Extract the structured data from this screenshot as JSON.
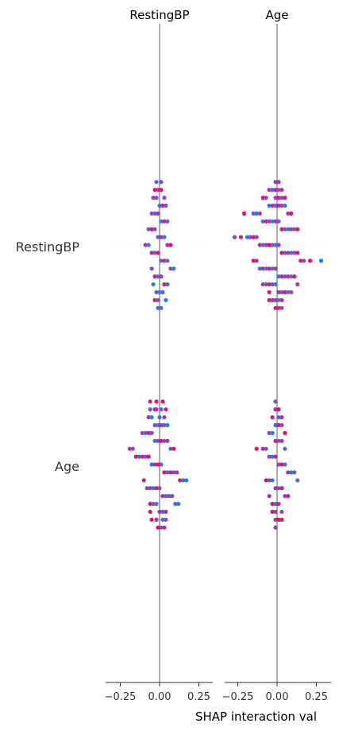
{
  "chart_data": {
    "type": "scatter",
    "subtype": "shap-interaction-beeswarm",
    "panels": [
      "RestingBP",
      "Age"
    ],
    "features": [
      "RestingBP",
      "Age"
    ],
    "xlabel": "SHAP interaction val",
    "xlim": [
      -0.35,
      0.35
    ],
    "xticks": [
      -0.25,
      0.0,
      0.25
    ],
    "xtick_labels": [
      "−0.25",
      "0.00",
      "0.25"
    ],
    "colors": {
      "low": "#008bfb",
      "mid": "#9a3fc7",
      "high": "#ff0052",
      "axis": "#808080",
      "text": "#333333"
    },
    "rows": [
      {
        "feature": "RestingBP",
        "panel": "RestingBP",
        "points": [
          [
            -0.02,
            0.35
          ],
          [
            0.01,
            0.35
          ],
          [
            -0.03,
            0.9
          ],
          [
            -0.01,
            0.7
          ],
          [
            0.01,
            0.9
          ],
          [
            0.03,
            0.5
          ],
          [
            -0.04,
            0.6
          ],
          [
            -0.02,
            0.4
          ],
          [
            0.0,
            0.2
          ],
          [
            0.02,
            0.8
          ],
          [
            0.04,
            0.3
          ],
          [
            -0.05,
            0.5
          ],
          [
            -0.03,
            0.2
          ],
          [
            -0.01,
            0.7
          ],
          [
            0.01,
            0.1
          ],
          [
            0.03,
            0.8
          ],
          [
            0.05,
            0.4
          ],
          [
            -0.07,
            0.3
          ],
          [
            -0.05,
            0.9
          ],
          [
            -0.03,
            0.5
          ],
          [
            -0.01,
            0.2
          ],
          [
            0.01,
            0.7
          ],
          [
            0.03,
            0.1
          ],
          [
            0.05,
            0.6
          ],
          [
            0.07,
            0.9
          ],
          [
            -0.09,
            0.6
          ],
          [
            -0.07,
            0.1
          ],
          [
            -0.05,
            0.8
          ],
          [
            -0.03,
            0.4
          ],
          [
            -0.01,
            0.9
          ],
          [
            0.01,
            0.3
          ],
          [
            0.03,
            0.7
          ],
          [
            0.05,
            0.2
          ],
          [
            0.07,
            0.5
          ],
          [
            0.09,
            0.1
          ],
          [
            -0.05,
            0.4
          ],
          [
            -0.03,
            0.8
          ],
          [
            -0.01,
            0.2
          ],
          [
            0.01,
            0.6
          ],
          [
            0.03,
            0.9
          ],
          [
            0.05,
            0.3
          ],
          [
            -0.04,
            0.1
          ],
          [
            -0.02,
            0.3
          ],
          [
            0.0,
            0.2
          ],
          [
            0.02,
            0.2
          ],
          [
            0.04,
            0.1
          ],
          [
            -0.03,
            0.8
          ],
          [
            -0.01,
            0.5
          ],
          [
            0.01,
            0.2
          ],
          [
            -0.01,
            0.2
          ]
        ]
      },
      {
        "feature": "RestingBP",
        "panel": "Age",
        "points": [
          [
            -0.01,
            0.2
          ],
          [
            0.01,
            0.1
          ],
          [
            -0.01,
            0.5
          ],
          [
            0.01,
            0.6
          ],
          [
            -0.03,
            0.3
          ],
          [
            -0.01,
            0.9
          ],
          [
            0.01,
            0.4
          ],
          [
            0.03,
            0.7
          ],
          [
            -0.05,
            0.6
          ],
          [
            -0.03,
            0.2
          ],
          [
            -0.01,
            0.5
          ],
          [
            0.01,
            0.9
          ],
          [
            0.03,
            0.3
          ],
          [
            0.05,
            0.8
          ],
          [
            -0.09,
            0.9
          ],
          [
            -0.07,
            0.4
          ],
          [
            -0.05,
            0.1
          ],
          [
            -0.03,
            0.7
          ],
          [
            -0.01,
            0.3
          ],
          [
            0.01,
            0.8
          ],
          [
            0.03,
            0.5
          ],
          [
            0.05,
            0.2
          ],
          [
            0.07,
            0.6
          ],
          [
            0.09,
            0.9
          ],
          [
            -0.21,
            0.95
          ],
          [
            -0.15,
            0.3
          ],
          [
            -0.13,
            0.1
          ],
          [
            -0.11,
            0.6
          ],
          [
            -0.09,
            0.2
          ],
          [
            -0.07,
            0.8
          ],
          [
            -0.05,
            0.5
          ],
          [
            -0.03,
            0.1
          ],
          [
            -0.01,
            0.7
          ],
          [
            0.01,
            0.3
          ],
          [
            0.03,
            0.9
          ],
          [
            0.05,
            0.4
          ],
          [
            0.07,
            0.1
          ],
          [
            0.09,
            0.6
          ],
          [
            0.11,
            0.3
          ],
          [
            0.13,
            0.9
          ],
          [
            -0.27,
            0.4
          ],
          [
            -0.23,
            0.8
          ],
          [
            -0.19,
            0.1
          ],
          [
            -0.17,
            0.5
          ],
          [
            -0.15,
            0.9
          ],
          [
            -0.13,
            0.3
          ],
          [
            -0.11,
            0.7
          ],
          [
            -0.09,
            0.2
          ],
          [
            -0.07,
            0.6
          ],
          [
            -0.05,
            1.0
          ],
          [
            -0.03,
            0.4
          ],
          [
            -0.01,
            0.1
          ],
          [
            0.01,
            0.6
          ],
          [
            0.03,
            0.9
          ],
          [
            0.05,
            0.3
          ],
          [
            0.07,
            0.7
          ],
          [
            0.09,
            0.2
          ],
          [
            0.11,
            0.5
          ],
          [
            0.13,
            0.8
          ],
          [
            0.15,
            0.9
          ],
          [
            0.17,
            0.4
          ],
          [
            0.21,
            0.95
          ],
          [
            0.28,
            0.05
          ],
          [
            -0.15,
            0.95
          ],
          [
            -0.13,
            0.5
          ],
          [
            -0.11,
            0.1
          ],
          [
            -0.09,
            0.7
          ],
          [
            -0.07,
            0.3
          ],
          [
            -0.05,
            0.9
          ],
          [
            -0.03,
            0.2
          ],
          [
            -0.01,
            0.6
          ],
          [
            0.01,
            0.1
          ],
          [
            0.03,
            0.8
          ],
          [
            0.05,
            0.4
          ],
          [
            0.07,
            0.7
          ],
          [
            0.09,
            0.2
          ],
          [
            0.11,
            0.9
          ],
          [
            0.13,
            0.5
          ],
          [
            -0.09,
            0.6
          ],
          [
            -0.07,
            0.2
          ],
          [
            -0.05,
            0.9
          ],
          [
            -0.03,
            0.4
          ],
          [
            -0.01,
            0.1
          ],
          [
            0.01,
            0.7
          ],
          [
            0.03,
            0.3
          ],
          [
            0.05,
            0.8
          ],
          [
            0.07,
            0.2
          ],
          [
            0.09,
            0.5
          ],
          [
            -0.05,
            0.9
          ],
          [
            -0.03,
            0.3
          ],
          [
            -0.01,
            0.6
          ],
          [
            0.01,
            0.1
          ],
          [
            0.03,
            0.8
          ],
          [
            -0.05,
            0.9
          ],
          [
            -0.03,
            0.6
          ],
          [
            0.01,
            0.95
          ],
          [
            0.03,
            0.5
          ],
          [
            -0.01,
            0.9
          ],
          [
            0.01,
            0.7
          ]
        ]
      },
      {
        "feature": "Age",
        "panel": "RestingBP",
        "points": [
          [
            -0.02,
            0.9
          ],
          [
            0.02,
            0.95
          ],
          [
            -0.06,
            0.8
          ],
          [
            -0.02,
            0.6
          ],
          [
            0.01,
            0.3
          ],
          [
            0.04,
            0.9
          ],
          [
            -0.06,
            0.3
          ],
          [
            -0.03,
            0.7
          ],
          [
            0.0,
            0.2
          ],
          [
            0.03,
            0.5
          ],
          [
            -0.07,
            0.6
          ],
          [
            -0.05,
            0.1
          ],
          [
            -0.03,
            0.4
          ],
          [
            -0.01,
            0.2
          ],
          [
            0.01,
            0.7
          ],
          [
            0.03,
            0.3
          ],
          [
            0.05,
            0.1
          ],
          [
            -0.11,
            0.5
          ],
          [
            -0.09,
            0.2
          ],
          [
            -0.07,
            0.8
          ],
          [
            -0.05,
            0.4
          ],
          [
            -0.03,
            0.1
          ],
          [
            -0.01,
            0.6
          ],
          [
            0.01,
            0.9
          ],
          [
            0.03,
            0.3
          ],
          [
            0.05,
            0.7
          ],
          [
            0.07,
            0.2
          ],
          [
            0.09,
            0.95
          ],
          [
            -0.19,
            0.6
          ],
          [
            -0.17,
            0.5
          ],
          [
            -0.15,
            0.9
          ],
          [
            -0.13,
            0.2
          ],
          [
            -0.11,
            0.7
          ],
          [
            -0.09,
            0.4
          ],
          [
            -0.07,
            0.95
          ],
          [
            -0.05,
            0.1
          ],
          [
            -0.03,
            0.6
          ],
          [
            -0.01,
            0.9
          ],
          [
            0.01,
            0.3
          ],
          [
            0.03,
            0.95
          ],
          [
            0.05,
            0.2
          ],
          [
            0.07,
            0.8
          ],
          [
            0.09,
            0.4
          ],
          [
            0.11,
            0.6
          ],
          [
            0.13,
            0.9
          ],
          [
            0.15,
            0.2
          ],
          [
            0.17,
            0.05
          ],
          [
            -0.1,
            0.8
          ],
          [
            -0.08,
            0.3
          ],
          [
            -0.06,
            0.6
          ],
          [
            -0.04,
            0.1
          ],
          [
            -0.02,
            0.9
          ],
          [
            0.0,
            0.4
          ],
          [
            0.02,
            0.7
          ],
          [
            0.04,
            0.2
          ],
          [
            0.06,
            0.5
          ],
          [
            0.08,
            0.3
          ],
          [
            0.1,
            0.1
          ],
          [
            0.12,
            0.2
          ],
          [
            -0.06,
            0.9
          ],
          [
            -0.04,
            0.4
          ],
          [
            -0.02,
            0.2
          ],
          [
            0.0,
            0.7
          ],
          [
            0.02,
            0.3
          ],
          [
            0.04,
            0.6
          ],
          [
            -0.06,
            0.9
          ],
          [
            -0.02,
            0.5
          ],
          [
            0.02,
            0.2
          ],
          [
            0.04,
            0.4
          ],
          [
            -0.05,
            0.95
          ],
          [
            -0.02,
            0.6
          ],
          [
            0.01,
            0.3
          ],
          [
            0.03,
            0.8
          ],
          [
            -0.01,
            0.9
          ]
        ]
      },
      {
        "feature": "Age",
        "panel": "Age",
        "points": [
          [
            -0.01,
            0.1
          ],
          [
            -0.01,
            0.3
          ],
          [
            0.01,
            0.4
          ],
          [
            -0.01,
            0.5
          ],
          [
            0.01,
            0.9
          ],
          [
            -0.01,
            0.7
          ],
          [
            0.01,
            0.3
          ],
          [
            0.03,
            0.6
          ],
          [
            -0.03,
            0.8
          ],
          [
            -0.01,
            0.2
          ],
          [
            0.01,
            0.9
          ],
          [
            0.03,
            0.5
          ],
          [
            0.05,
            0.95
          ],
          [
            -0.05,
            0.4
          ],
          [
            -0.03,
            0.1
          ],
          [
            -0.01,
            0.8
          ],
          [
            0.01,
            0.3
          ],
          [
            0.03,
            0.6
          ],
          [
            0.05,
            0.2
          ],
          [
            -0.13,
            0.9
          ],
          [
            -0.09,
            0.7
          ],
          [
            -0.07,
            0.2
          ],
          [
            -0.05,
            0.5
          ],
          [
            -0.03,
            0.1
          ],
          [
            -0.01,
            0.8
          ],
          [
            0.01,
            0.4
          ],
          [
            0.03,
            0.9
          ],
          [
            0.05,
            0.3
          ],
          [
            0.07,
            0.6
          ],
          [
            0.09,
            0.1
          ],
          [
            0.11,
            0.3
          ],
          [
            0.13,
            0.2
          ],
          [
            -0.07,
            0.9
          ],
          [
            -0.05,
            0.4
          ],
          [
            -0.03,
            0.1
          ],
          [
            -0.01,
            0.7
          ],
          [
            0.01,
            0.3
          ],
          [
            0.03,
            0.9
          ],
          [
            0.05,
            0.5
          ],
          [
            0.07,
            0.8
          ],
          [
            -0.05,
            0.6
          ],
          [
            -0.03,
            0.95
          ],
          [
            -0.01,
            0.2
          ],
          [
            0.01,
            0.7
          ],
          [
            0.03,
            0.4
          ],
          [
            -0.03,
            0.9
          ],
          [
            -0.01,
            0.4
          ],
          [
            0.01,
            0.6
          ],
          [
            0.03,
            0.95
          ],
          [
            -0.01,
            0.6
          ],
          [
            0.01,
            0.9
          ],
          [
            -0.01,
            0.5
          ],
          [
            -0.01,
            0.5
          ]
        ]
      }
    ]
  }
}
